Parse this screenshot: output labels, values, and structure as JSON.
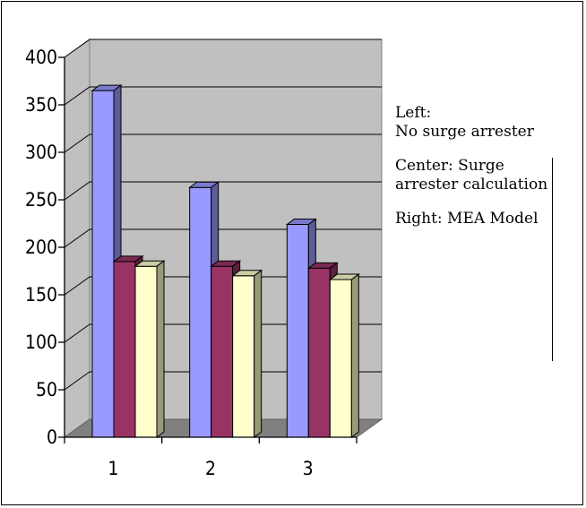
{
  "chart_data": {
    "type": "bar",
    "categories": [
      "1",
      "2",
      "3"
    ],
    "series": [
      {
        "color": "#9999ff",
        "values": [
          365,
          263,
          224
        ]
      },
      {
        "color": "#993366",
        "values": [
          185,
          180,
          178
        ]
      },
      {
        "color": "#ffffcc",
        "values": [
          180,
          170,
          166
        ]
      }
    ],
    "ylim": [
      0,
      400
    ],
    "yticks": [
      0,
      50,
      100,
      150,
      200,
      250,
      300,
      350,
      400
    ],
    "grid": true,
    "plot_bg": "#c0c0c0"
  },
  "legend": {
    "entries": [
      "Left:\nNo surge arrester",
      "Center: Surge arrester calculation",
      "Right: MEA Model"
    ]
  }
}
